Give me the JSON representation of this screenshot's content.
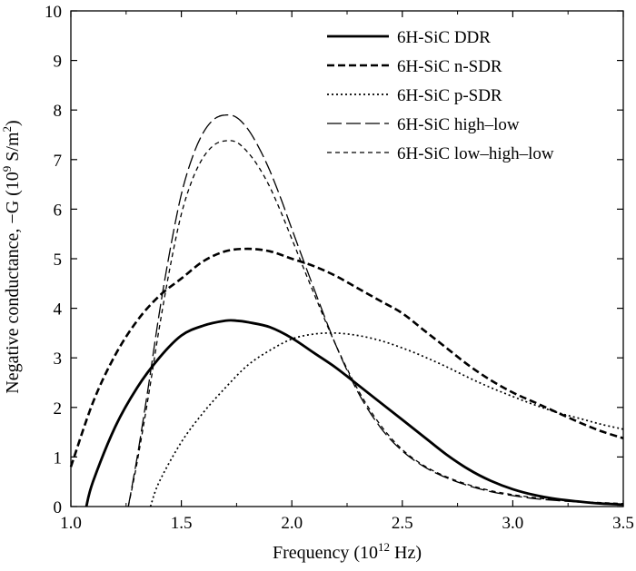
{
  "chart_data": {
    "type": "line",
    "title": "",
    "xlabel": "Frequency (10",
    "xlabel_sup": "12",
    "xlabel_tail": " Hz)",
    "ylabel": "Negative conductance, −G (10",
    "ylabel_sup": "9",
    "ylabel_tail": " S/m",
    "ylabel_sup2": "2",
    "ylabel_end": ")",
    "xlim": [
      1.0,
      3.5
    ],
    "ylim": [
      0,
      10
    ],
    "x_ticks": [
      "1.0",
      "1.5",
      "2.0",
      "2.5",
      "3.0",
      "3.5"
    ],
    "y_ticks": [
      "0",
      "1",
      "2",
      "3",
      "4",
      "5",
      "6",
      "7",
      "8",
      "9",
      "10"
    ],
    "grid": false,
    "legend_position": "top-right",
    "series": [
      {
        "name": "6H-SiC DDR",
        "style": "solid-thick",
        "x": [
          1.07,
          1.1,
          1.2,
          1.3,
          1.4,
          1.5,
          1.6,
          1.7,
          1.75,
          1.8,
          1.9,
          2.0,
          2.1,
          2.2,
          2.3,
          2.4,
          2.5,
          2.6,
          2.7,
          2.8,
          2.9,
          3.0,
          3.1,
          3.2,
          3.3,
          3.4,
          3.5
        ],
        "y": [
          0.0,
          0.5,
          1.6,
          2.4,
          3.0,
          3.45,
          3.65,
          3.75,
          3.75,
          3.72,
          3.62,
          3.4,
          3.1,
          2.8,
          2.45,
          2.1,
          1.75,
          1.4,
          1.05,
          0.75,
          0.52,
          0.35,
          0.23,
          0.15,
          0.1,
          0.06,
          0.04
        ]
      },
      {
        "name": "6H-SiC n-SDR",
        "style": "dashed-thick",
        "x": [
          1.0,
          1.1,
          1.2,
          1.3,
          1.4,
          1.5,
          1.6,
          1.7,
          1.8,
          1.9,
          2.0,
          2.1,
          2.2,
          2.3,
          2.4,
          2.5,
          2.6,
          2.7,
          2.8,
          2.9,
          3.0,
          3.1,
          3.2,
          3.3,
          3.4,
          3.5
        ],
        "y": [
          0.8,
          2.1,
          3.05,
          3.75,
          4.25,
          4.6,
          4.95,
          5.15,
          5.2,
          5.15,
          5.0,
          4.85,
          4.65,
          4.4,
          4.15,
          3.9,
          3.55,
          3.2,
          2.85,
          2.55,
          2.3,
          2.1,
          1.9,
          1.7,
          1.52,
          1.38
        ]
      },
      {
        "name": "6H-SiC p-SDR",
        "style": "dotted",
        "x": [
          1.36,
          1.4,
          1.5,
          1.6,
          1.7,
          1.8,
          1.9,
          2.0,
          2.1,
          2.2,
          2.3,
          2.4,
          2.5,
          2.6,
          2.7,
          2.8,
          2.9,
          3.0,
          3.1,
          3.2,
          3.3,
          3.4,
          3.5
        ],
        "y": [
          0.0,
          0.5,
          1.3,
          1.9,
          2.4,
          2.85,
          3.15,
          3.38,
          3.48,
          3.5,
          3.45,
          3.35,
          3.2,
          3.02,
          2.82,
          2.6,
          2.4,
          2.22,
          2.05,
          1.9,
          1.78,
          1.66,
          1.56
        ]
      },
      {
        "name": "6H-SiC high–low",
        "style": "long-dash",
        "x": [
          1.26,
          1.3,
          1.35,
          1.4,
          1.45,
          1.5,
          1.55,
          1.6,
          1.65,
          1.7,
          1.75,
          1.8,
          1.85,
          1.9,
          1.95,
          2.0,
          2.1,
          2.2,
          2.3,
          2.4,
          2.5,
          2.6,
          2.7,
          2.8,
          2.9,
          3.0,
          3.1,
          3.2,
          3.3,
          3.4,
          3.5
        ],
        "y": [
          0.0,
          1.0,
          2.4,
          3.9,
          5.2,
          6.3,
          7.05,
          7.55,
          7.82,
          7.9,
          7.85,
          7.62,
          7.25,
          6.78,
          6.22,
          5.6,
          4.4,
          3.25,
          2.3,
          1.6,
          1.12,
          0.8,
          0.58,
          0.42,
          0.3,
          0.22,
          0.16,
          0.12,
          0.09,
          0.07,
          0.05
        ]
      },
      {
        "name": "6H-SiC low–high–low",
        "style": "short-dash",
        "x": [
          1.26,
          1.3,
          1.35,
          1.4,
          1.45,
          1.5,
          1.55,
          1.6,
          1.65,
          1.7,
          1.75,
          1.8,
          1.85,
          1.9,
          1.95,
          2.0,
          2.1,
          2.2,
          2.3,
          2.4,
          2.5,
          2.6,
          2.7,
          2.8,
          2.9,
          3.0,
          3.1,
          3.2,
          3.3,
          3.4,
          3.5
        ],
        "y": [
          0.0,
          0.9,
          2.2,
          3.6,
          4.85,
          5.9,
          6.6,
          7.05,
          7.3,
          7.38,
          7.35,
          7.15,
          6.85,
          6.45,
          5.95,
          5.4,
          4.3,
          3.25,
          2.35,
          1.65,
          1.15,
          0.82,
          0.6,
          0.44,
          0.32,
          0.24,
          0.18,
          0.13,
          0.1,
          0.08,
          0.06
        ]
      }
    ]
  }
}
